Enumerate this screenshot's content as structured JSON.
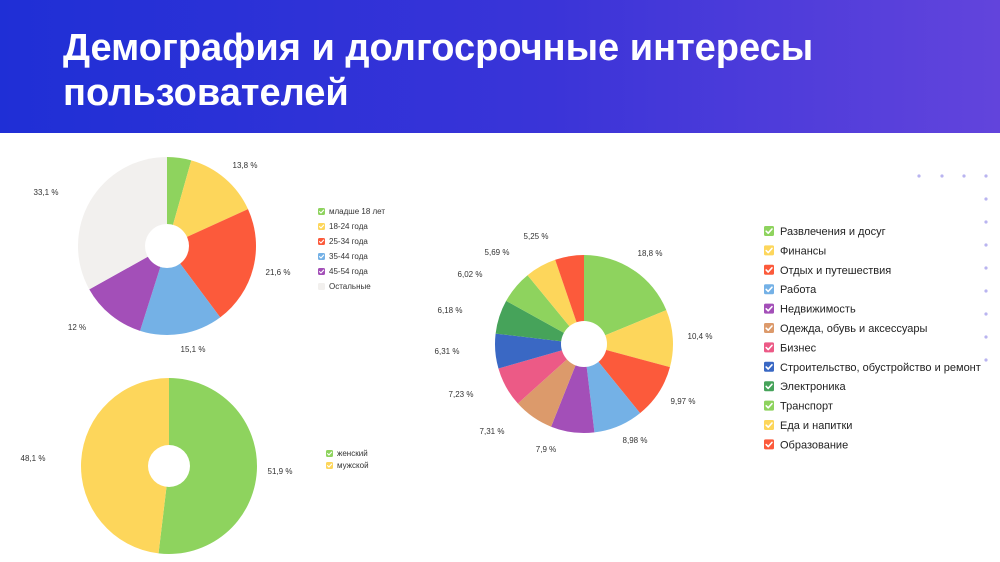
{
  "header": {
    "title": "Демография и долгосрочные интересы пользователей"
  },
  "chart_data": [
    {
      "type": "pie",
      "id": "age",
      "title": "",
      "categories": [
        "младше 18 лет",
        "18-24 года",
        "25-34 года",
        "35-44 года",
        "45-54 года",
        "Остальные"
      ],
      "values": [
        4.4,
        13.8,
        21.6,
        15.1,
        12,
        33.1
      ],
      "labels": [
        "",
        "13,8 %",
        "21,6 %",
        "15,1 %",
        "12 %",
        "33,1 %"
      ],
      "colors": [
        "#8ed35e",
        "#fdd65b",
        "#fc5a3b",
        "#74b1e6",
        "#a34fb8",
        "#f2f0ee"
      ],
      "legend_position": "right"
    },
    {
      "type": "pie",
      "id": "gender",
      "title": "",
      "categories": [
        "женский",
        "мужской"
      ],
      "values": [
        51.9,
        48.1
      ],
      "labels": [
        "51,9 %",
        "48,1 %"
      ],
      "colors": [
        "#8ed35e",
        "#fdd65b"
      ],
      "legend_position": "right"
    },
    {
      "type": "pie",
      "id": "interests",
      "title": "",
      "categories": [
        "Развлечения и досуг",
        "Финансы",
        "Отдых и путешествия",
        "Работа",
        "Недвижимость",
        "Одежда, обувь и аксессуары",
        "Бизнес",
        "Строительство, обустройство и ремонт",
        "Электроника",
        "Транспорт",
        "Еда и напитки",
        "Образование"
      ],
      "values": [
        18.8,
        10.4,
        9.97,
        8.98,
        7.9,
        7.31,
        7.23,
        6.31,
        6.18,
        6.02,
        5.69,
        5.25
      ],
      "labels": [
        "18,8 %",
        "10,4 %",
        "9,97 %",
        "8,98 %",
        "7,9 %",
        "7,31 %",
        "7,23 %",
        "6,31 %",
        "6,18 %",
        "6,02 %",
        "5,69 %",
        "5,25 %"
      ],
      "colors": [
        "#8ed35e",
        "#fdd65b",
        "#fc5a3b",
        "#74b1e6",
        "#a34fb8",
        "#dc9a6b",
        "#ec5a86",
        "#3a68c4",
        "#46a35a",
        "#8ed35e",
        "#fdd65b",
        "#fc5a3b"
      ],
      "legend_position": "right"
    }
  ]
}
